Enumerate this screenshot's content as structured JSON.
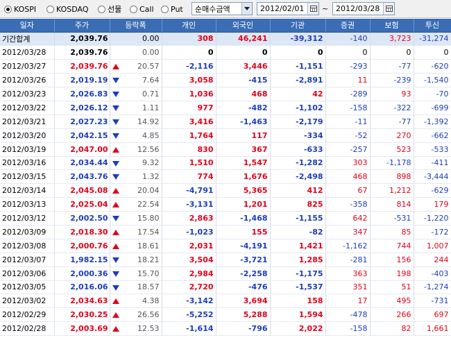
{
  "toolbar": {
    "markets": [
      {
        "label": "KOSPI",
        "checked": true
      },
      {
        "label": "KOSDAQ",
        "checked": false
      },
      {
        "label": "선물",
        "checked": false
      },
      {
        "label": "Call",
        "checked": false
      },
      {
        "label": "Put",
        "checked": false
      }
    ],
    "mode_select": "순매수금액",
    "start_date": "2012/02/01",
    "range_separator": "~",
    "end_date": "2012/03/28"
  },
  "columns": [
    "일자",
    "주가",
    "등락폭",
    "개인",
    "외국인",
    "기관",
    "증권",
    "보험",
    "투신"
  ],
  "colors": {
    "up": "#e0001b",
    "down": "#1c3dbd",
    "header": "#3b6db4"
  },
  "rows": [
    {
      "date": "기간합계",
      "price": "2,039.76",
      "dir": "",
      "change": "0.00",
      "indiv": "308",
      "foreign": "46,241",
      "inst": "-39,312",
      "sec": "-140",
      "ins": "3,723",
      "trust": "-31,274",
      "total": true
    },
    {
      "date": "2012/03/28",
      "price": "2,039.76",
      "dir": "",
      "change": "0.00",
      "indiv": "0",
      "foreign": "0",
      "inst": "0",
      "sec": "0",
      "ins": "0",
      "trust": "0"
    },
    {
      "date": "2012/03/27",
      "price": "2,039.76",
      "dir": "up",
      "change": "20.57",
      "indiv": "-2,116",
      "foreign": "3,446",
      "inst": "-1,151",
      "sec": "-293",
      "ins": "-77",
      "trust": "-620"
    },
    {
      "date": "2012/03/26",
      "price": "2,019.19",
      "dir": "down",
      "change": "7.64",
      "indiv": "3,058",
      "foreign": "-415",
      "inst": "-2,891",
      "sec": "11",
      "ins": "-239",
      "trust": "-1,540"
    },
    {
      "date": "2012/03/23",
      "price": "2,026.83",
      "dir": "down",
      "change": "0.71",
      "indiv": "1,036",
      "foreign": "468",
      "inst": "42",
      "sec": "-289",
      "ins": "93",
      "trust": "-70"
    },
    {
      "date": "2012/03/22",
      "price": "2,026.12",
      "dir": "down",
      "change": "1.11",
      "indiv": "977",
      "foreign": "-482",
      "inst": "-1,102",
      "sec": "-158",
      "ins": "-322",
      "trust": "-699"
    },
    {
      "date": "2012/03/21",
      "price": "2,027.23",
      "dir": "down",
      "change": "14.92",
      "indiv": "3,416",
      "foreign": "-1,463",
      "inst": "-2,179",
      "sec": "-11",
      "ins": "-77",
      "trust": "-1,392"
    },
    {
      "date": "2012/03/20",
      "price": "2,042.15",
      "dir": "down",
      "change": "4.85",
      "indiv": "1,764",
      "foreign": "117",
      "inst": "-334",
      "sec": "-52",
      "ins": "270",
      "trust": "-662"
    },
    {
      "date": "2012/03/19",
      "price": "2,047.00",
      "dir": "up",
      "change": "12.56",
      "indiv": "830",
      "foreign": "367",
      "inst": "-633",
      "sec": "-257",
      "ins": "523",
      "trust": "-533"
    },
    {
      "date": "2012/03/16",
      "price": "2,034.44",
      "dir": "down",
      "change": "9.32",
      "indiv": "1,510",
      "foreign": "1,547",
      "inst": "-1,282",
      "sec": "303",
      "ins": "-1,178",
      "trust": "-411"
    },
    {
      "date": "2012/03/15",
      "price": "2,043.76",
      "dir": "down",
      "change": "1.32",
      "indiv": "774",
      "foreign": "1,676",
      "inst": "-2,498",
      "sec": "468",
      "ins": "898",
      "trust": "-3,444"
    },
    {
      "date": "2012/03/14",
      "price": "2,045.08",
      "dir": "up",
      "change": "20.04",
      "indiv": "-4,791",
      "foreign": "5,365",
      "inst": "412",
      "sec": "67",
      "ins": "1,212",
      "trust": "-629"
    },
    {
      "date": "2012/03/13",
      "price": "2,025.04",
      "dir": "up",
      "change": "22.54",
      "indiv": "-3,131",
      "foreign": "1,201",
      "inst": "825",
      "sec": "-358",
      "ins": "814",
      "trust": "179"
    },
    {
      "date": "2012/03/12",
      "price": "2,002.50",
      "dir": "down",
      "change": "15.80",
      "indiv": "2,863",
      "foreign": "-1,468",
      "inst": "-1,155",
      "sec": "642",
      "ins": "-531",
      "trust": "-1,220"
    },
    {
      "date": "2012/03/09",
      "price": "2,018.30",
      "dir": "up",
      "change": "17.54",
      "indiv": "-1,023",
      "foreign": "155",
      "inst": "-82",
      "sec": "347",
      "ins": "85",
      "trust": "-172"
    },
    {
      "date": "2012/03/08",
      "price": "2,000.76",
      "dir": "up",
      "change": "18.61",
      "indiv": "2,031",
      "foreign": "-4,191",
      "inst": "1,421",
      "sec": "-1,162",
      "ins": "744",
      "trust": "1,007"
    },
    {
      "date": "2012/03/07",
      "price": "1,982.15",
      "dir": "down",
      "change": "18.21",
      "indiv": "3,504",
      "foreign": "-3,721",
      "inst": "1,285",
      "sec": "-281",
      "ins": "156",
      "trust": "244"
    },
    {
      "date": "2012/03/06",
      "price": "2,000.36",
      "dir": "down",
      "change": "15.70",
      "indiv": "2,984",
      "foreign": "-2,258",
      "inst": "-1,175",
      "sec": "363",
      "ins": "198",
      "trust": "-403"
    },
    {
      "date": "2012/03/05",
      "price": "2,016.06",
      "dir": "down",
      "change": "18.57",
      "indiv": "2,720",
      "foreign": "-476",
      "inst": "-1,537",
      "sec": "351",
      "ins": "51",
      "trust": "-1,274"
    },
    {
      "date": "2012/03/02",
      "price": "2,034.63",
      "dir": "up",
      "change": "4.38",
      "indiv": "-3,142",
      "foreign": "3,694",
      "inst": "158",
      "sec": "17",
      "ins": "495",
      "trust": "-731"
    },
    {
      "date": "2012/02/29",
      "price": "2,030.25",
      "dir": "up",
      "change": "26.56",
      "indiv": "-5,252",
      "foreign": "5,288",
      "inst": "1,594",
      "sec": "-478",
      "ins": "266",
      "trust": "697"
    },
    {
      "date": "2012/02/28",
      "price": "2,003.69",
      "dir": "up",
      "change": "12.53",
      "indiv": "-1,614",
      "foreign": "-796",
      "inst": "2,022",
      "sec": "-158",
      "ins": "82",
      "trust": "1,661"
    }
  ]
}
